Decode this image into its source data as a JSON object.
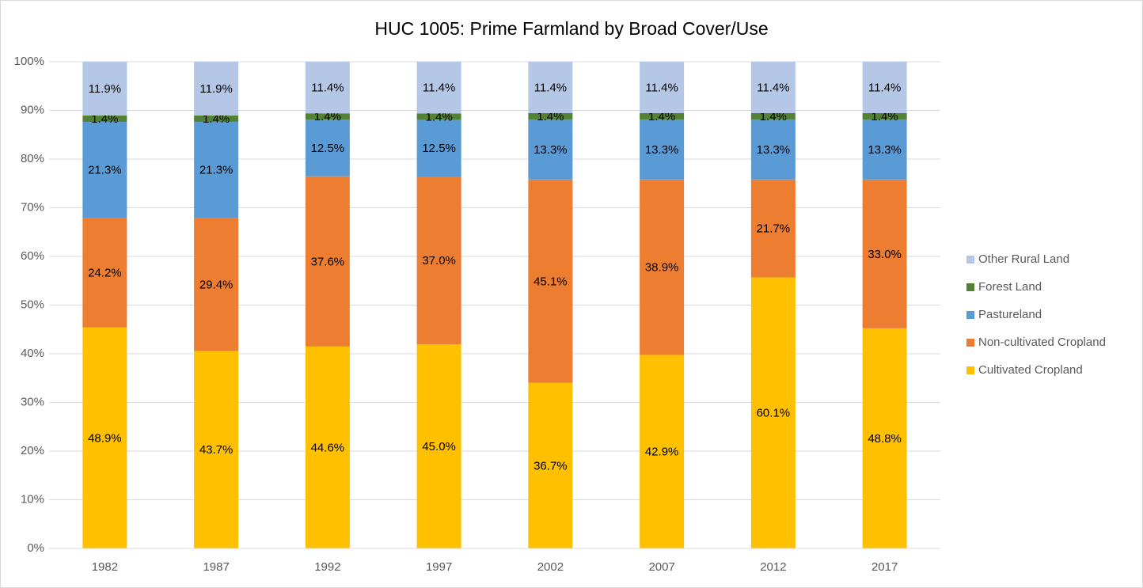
{
  "chart_data": {
    "type": "bar",
    "stack": "percent",
    "title": "HUC 1005:  Prime Farmland by Broad Cover/Use",
    "categories": [
      "1982",
      "1987",
      "1992",
      "1997",
      "2002",
      "2007",
      "2012",
      "2017"
    ],
    "series": [
      {
        "name": "Cultivated Cropland",
        "color": "#ffc000",
        "values": [
          48.9,
          43.7,
          44.6,
          45.0,
          36.7,
          42.9,
          60.1,
          48.8
        ],
        "value_labels": [
          "48.9%",
          "43.7%",
          "44.6%",
          "45.0%",
          "36.7%",
          "42.9%",
          "60.1%",
          "48.8%"
        ]
      },
      {
        "name": "Non-cultivated Cropland",
        "color": "#ed7d31",
        "values": [
          24.2,
          29.4,
          37.6,
          37.0,
          45.1,
          38.9,
          21.7,
          33.0
        ],
        "value_labels": [
          "24.2%",
          "29.4%",
          "37.6%",
          "37.0%",
          "45.1%",
          "38.9%",
          "21.7%",
          "33.0%"
        ]
      },
      {
        "name": "Pastureland",
        "color": "#5b9bd5",
        "values": [
          21.3,
          21.3,
          12.5,
          12.5,
          13.3,
          13.3,
          13.3,
          13.3
        ],
        "value_labels": [
          "21.3%",
          "21.3%",
          "12.5%",
          "12.5%",
          "13.3%",
          "13.3%",
          "13.3%",
          "13.3%"
        ]
      },
      {
        "name": "Forest Land",
        "color": "#548235",
        "values": [
          1.4,
          1.4,
          1.4,
          1.4,
          1.4,
          1.4,
          1.4,
          1.4
        ],
        "value_labels": [
          "1.4%",
          "1.4%",
          "1.4%",
          "1.4%",
          "1.4%",
          "1.4%",
          "1.4%",
          "1.4%"
        ]
      },
      {
        "name": "Other Rural Land",
        "color": "#b4c7e7",
        "values": [
          11.9,
          11.9,
          11.4,
          11.4,
          11.4,
          11.4,
          11.4,
          11.4
        ],
        "value_labels": [
          "11.9%",
          "11.9%",
          "11.4%",
          "11.4%",
          "11.4%",
          "11.4%",
          "11.4%",
          "11.4%"
        ]
      }
    ],
    "ylim": [
      0,
      100
    ],
    "yticks": [
      {
        "value": 0,
        "label": "0%"
      },
      {
        "value": 10,
        "label": "10%"
      },
      {
        "value": 20,
        "label": "20%"
      },
      {
        "value": 30,
        "label": "30%"
      },
      {
        "value": 40,
        "label": "40%"
      },
      {
        "value": 50,
        "label": "50%"
      },
      {
        "value": 60,
        "label": "60%"
      },
      {
        "value": 70,
        "label": "70%"
      },
      {
        "value": 80,
        "label": "80%"
      },
      {
        "value": 90,
        "label": "90%"
      },
      {
        "value": 100,
        "label": "100%"
      }
    ],
    "grid": true,
    "legend": "right"
  }
}
